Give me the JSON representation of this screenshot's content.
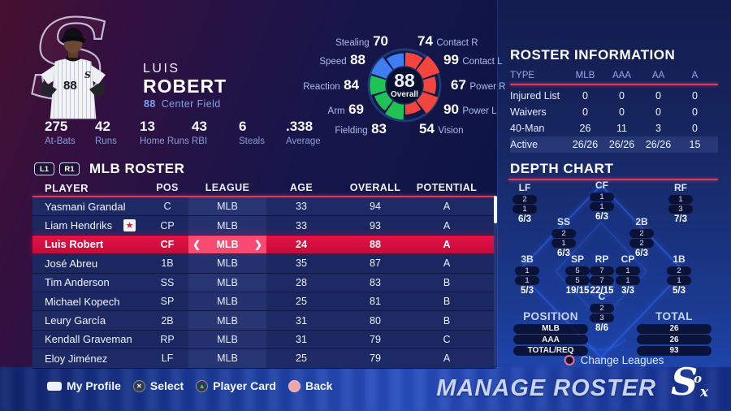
{
  "player": {
    "first_name": "LUIS",
    "last_name": "ROBERT",
    "jersey_number": "88",
    "position": "Center Field",
    "stats": [
      {
        "value": "275",
        "label": "At-Bats"
      },
      {
        "value": "42",
        "label": "Runs"
      },
      {
        "value": "13",
        "label": "Home Runs"
      },
      {
        "value": "43",
        "label": "RBI"
      },
      {
        "value": "6",
        "label": "Steals"
      },
      {
        "value": ".338",
        "label": "Average"
      }
    ]
  },
  "chart_data": {
    "type": "polar_bar",
    "center_value": "88",
    "center_label": "Overall",
    "value_range": [
      0,
      99
    ],
    "segments": [
      {
        "label": "Contact R",
        "value": 74,
        "color": "#f2453d"
      },
      {
        "label": "Contact L",
        "value": 99,
        "color": "#f2453d"
      },
      {
        "label": "Power R",
        "value": 67,
        "color": "#f2453d"
      },
      {
        "label": "Power L",
        "value": 90,
        "color": "#f2453d"
      },
      {
        "label": "Vision",
        "value": 54,
        "color": "#f2453d"
      },
      {
        "label": "Fielding",
        "value": 83,
        "color": "#1fc353"
      },
      {
        "label": "Arm",
        "value": 69,
        "color": "#1fc353"
      },
      {
        "label": "Reaction",
        "value": 84,
        "color": "#1fc353"
      },
      {
        "label": "Speed",
        "value": 88,
        "color": "#3e7df2"
      },
      {
        "label": "Stealing",
        "value": 70,
        "color": "#3e7df2"
      }
    ]
  },
  "roster_info": {
    "title": "ROSTER INFORMATION",
    "columns": [
      "TYPE",
      "MLB",
      "AAA",
      "AA",
      "A"
    ],
    "rows": [
      {
        "label": "Injured List",
        "values": [
          "0",
          "0",
          "0",
          "0"
        ]
      },
      {
        "label": "Waivers",
        "values": [
          "0",
          "0",
          "0",
          "0"
        ]
      },
      {
        "label": "40-Man",
        "values": [
          "26",
          "11",
          "3",
          "0"
        ]
      },
      {
        "label": "Active",
        "values": [
          "26/26",
          "26/26",
          "26/26",
          "15"
        ]
      }
    ]
  },
  "roster_table": {
    "l1_label": "L1",
    "r1_label": "R1",
    "title": "MLB ROSTER",
    "columns": [
      "PLAYER",
      "POS",
      "LEAGUE",
      "AGE",
      "OVERALL",
      "POTENTIAL"
    ],
    "league_arrow_left": "❮",
    "league_arrow_right": "❯",
    "rows": [
      {
        "player": "Yasmani Grandal",
        "pos": "C",
        "league": "MLB",
        "age": "33",
        "overall": "94",
        "potential": "A"
      },
      {
        "player": "Liam Hendriks",
        "badge": "★",
        "pos": "CP",
        "league": "MLB",
        "age": "33",
        "overall": "93",
        "potential": "A"
      },
      {
        "player": "Luis Robert",
        "pos": "CF",
        "league": "MLB",
        "age": "24",
        "overall": "88",
        "potential": "A"
      },
      {
        "player": "José Abreu",
        "pos": "1B",
        "league": "MLB",
        "age": "35",
        "overall": "87",
        "potential": "A"
      },
      {
        "player": "Tim Anderson",
        "pos": "SS",
        "league": "MLB",
        "age": "28",
        "overall": "83",
        "potential": "B"
      },
      {
        "player": "Michael Kopech",
        "pos": "SP",
        "league": "MLB",
        "age": "25",
        "overall": "81",
        "potential": "B"
      },
      {
        "player": "Leury García",
        "pos": "2B",
        "league": "MLB",
        "age": "31",
        "overall": "80",
        "potential": "B"
      },
      {
        "player": "Kendall Graveman",
        "pos": "RP",
        "league": "MLB",
        "age": "31",
        "overall": "79",
        "potential": "C"
      },
      {
        "player": "Eloy Jiménez",
        "pos": "LF",
        "league": "MLB",
        "age": "25",
        "overall": "79",
        "potential": "A"
      }
    ]
  },
  "depth_chart": {
    "title": "DEPTH CHART",
    "positions": [
      {
        "code": "LF",
        "mlb": "2",
        "aaa": "1",
        "total": "6/3"
      },
      {
        "code": "CF",
        "mlb": "1",
        "aaa": "1",
        "total": "6/3"
      },
      {
        "code": "RF",
        "mlb": "1",
        "aaa": "3",
        "total": "7/3"
      },
      {
        "code": "SS",
        "mlb": "2",
        "aaa": "1",
        "total": "6/3"
      },
      {
        "code": "2B",
        "mlb": "2",
        "aaa": "2",
        "total": "6/3"
      },
      {
        "code": "3B",
        "mlb": "1",
        "aaa": "1",
        "total": "5/3"
      },
      {
        "code": "SP",
        "mlb": "5",
        "aaa": "5",
        "total": "19/15"
      },
      {
        "code": "RP",
        "mlb": "7",
        "aaa": "7",
        "total": "22/15"
      },
      {
        "code": "CP",
        "mlb": "1",
        "aaa": "1",
        "total": "3/3"
      },
      {
        "code": "1B",
        "mlb": "2",
        "aaa": "1",
        "total": "5/3"
      },
      {
        "code": "C",
        "mlb": "2",
        "aaa": "3",
        "total": "8/6"
      }
    ],
    "summary": {
      "position_header": "POSITION",
      "total_header": "TOTAL",
      "rows": [
        {
          "label": "MLB",
          "value": "26"
        },
        {
          "label": "AAA",
          "value": "26"
        },
        {
          "label": "TOTAL/REQ",
          "value": "93"
        }
      ]
    },
    "change_leagues_label": "Change Leagues"
  },
  "footer": {
    "hints": [
      {
        "icon": "touchpad-icon",
        "glyph": "",
        "label": "My Profile"
      },
      {
        "icon": "cross-button-icon",
        "glyph": "✕",
        "label": "Select"
      },
      {
        "icon": "triangle-button-icon",
        "glyph": "▲",
        "label": "Player Card"
      },
      {
        "icon": "circle-button-icon",
        "glyph": "",
        "label": "Back"
      }
    ],
    "screen_title": "MANAGE ROSTER",
    "logo": {
      "s": "S",
      "o": "o",
      "x": "x"
    }
  },
  "colors": {
    "accent_red": "#e23a5f",
    "selected_row": "#d90f3f",
    "selected_league_cell": "#fb4a72",
    "wheel_red": "#f2453d",
    "wheel_green": "#1fc353",
    "wheel_blue": "#3e7df2"
  }
}
